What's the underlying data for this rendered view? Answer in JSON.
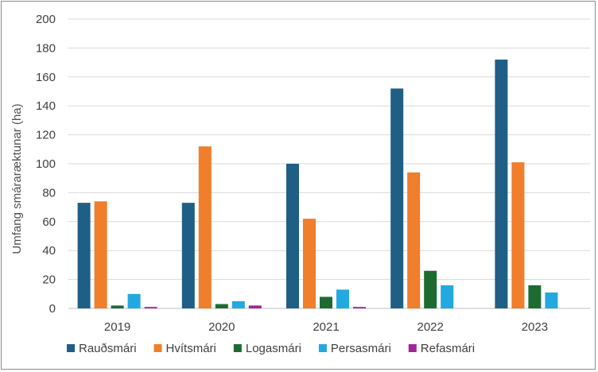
{
  "chart_data": {
    "type": "bar",
    "categories": [
      "2019",
      "2020",
      "2021",
      "2022",
      "2023"
    ],
    "series": [
      {
        "name": "Rauðsmári",
        "color": "#1f5f86",
        "values": [
          73,
          73,
          100,
          152,
          172
        ]
      },
      {
        "name": "Hvítsmári",
        "color": "#f07e2b",
        "values": [
          74,
          112,
          62,
          94,
          101
        ]
      },
      {
        "name": "Logasmári",
        "color": "#1e6b32",
        "values": [
          2,
          3,
          8,
          26,
          16
        ]
      },
      {
        "name": "Persasmári",
        "color": "#22a9e0",
        "values": [
          10,
          5,
          13,
          16,
          11
        ]
      },
      {
        "name": "Refasmári",
        "color": "#a0259a",
        "values": [
          1,
          2,
          1,
          0,
          0
        ]
      }
    ],
    "title": "",
    "xlabel": "",
    "ylabel": "Umfang smáraræktunar (ha)",
    "ylim": [
      0,
      200
    ],
    "yticks": [
      "0",
      "20",
      "40",
      "60",
      "80",
      "100",
      "120",
      "140",
      "160",
      "180",
      "200"
    ],
    "grid": true,
    "legend_position": "bottom"
  }
}
